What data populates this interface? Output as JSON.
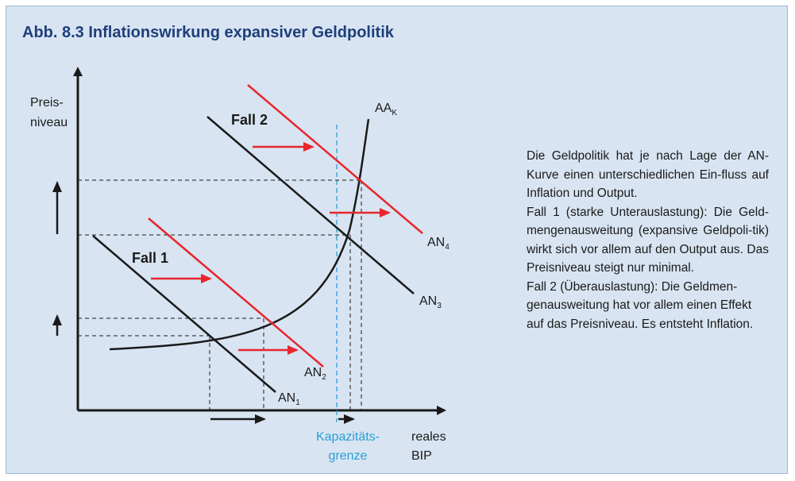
{
  "title": "Abb. 8.3  Inflationswirkung expansiver Geldpolitik",
  "axes": {
    "y_label_line1": "Preis-",
    "y_label_line2": "niveau",
    "x_label_line1": "reales",
    "x_label_line2": "BIP",
    "capacity_line1": "Kapazitäts-",
    "capacity_line2": "grenze"
  },
  "curves": {
    "supply": "AA",
    "supply_sub": "K",
    "an1": "AN",
    "an1_sub": "1",
    "an2": "AN",
    "an2_sub": "2",
    "an3": "AN",
    "an3_sub": "3",
    "an4": "AN",
    "an4_sub": "4"
  },
  "cases": {
    "case1": "Fall 1",
    "case2": "Fall 2"
  },
  "description": [
    "Die Geldpolitik hat je nach Lage der AN-Kurve einen unterschiedlichen Ein-fluss auf Inflation und Output.",
    "Fall 1 (starke Unterauslastung): Die Geld-mengenausweitung (expansive Geldpoli-tik) wirkt sich vor allem auf den Output aus. Das Preisniveau steigt nur minimal.",
    "Fall 2 (Überauslastung): Die Geldmen-genausweitung hat vor allem einen Effekt auf das Preisniveau. Es entsteht Inflation."
  ],
  "colors": {
    "background": "#d8e4f2",
    "title": "#1f3f7a",
    "demand_new": "#e8262b",
    "capacity": "#2a9fd6",
    "curve": "#1a1a1a"
  }
}
